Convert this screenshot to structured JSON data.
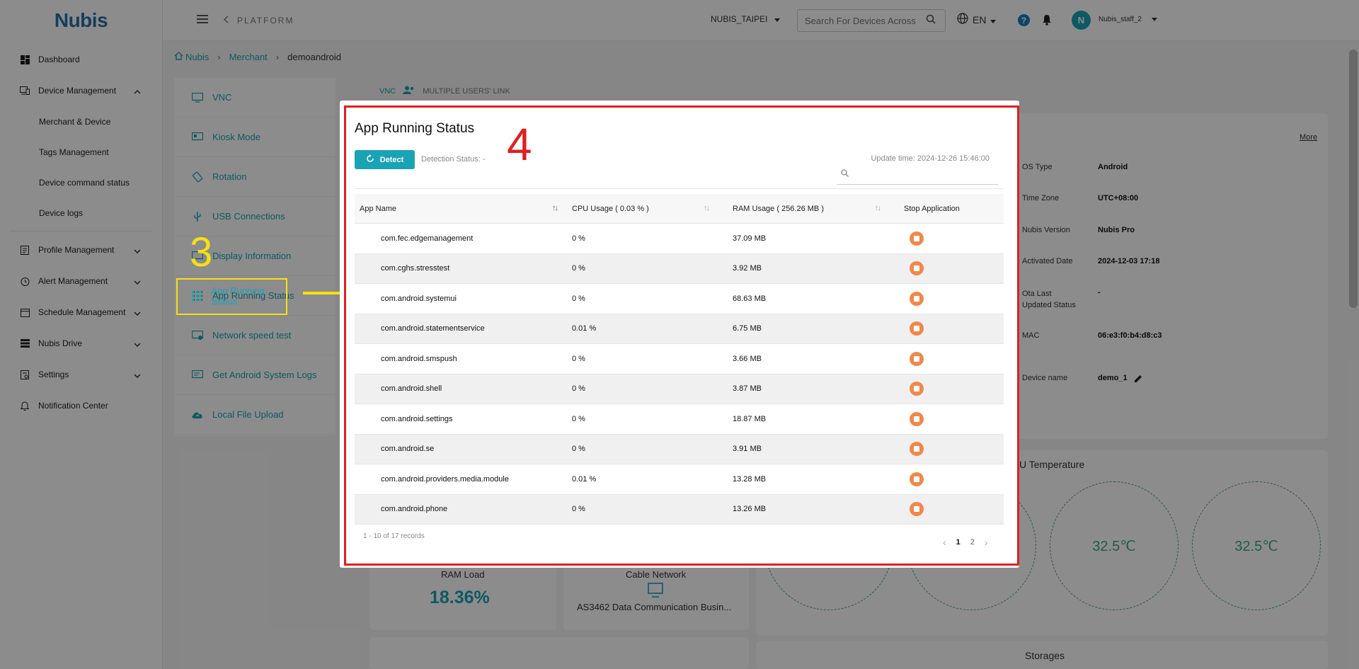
{
  "brand": {
    "logo_text": "Nubis"
  },
  "sidebar": {
    "items": [
      {
        "label": "Dashboard",
        "icon": "dashboard-icon"
      },
      {
        "label": "Device Management",
        "icon": "device-management-icon",
        "expanded": true,
        "children": [
          {
            "label": "Merchant & Device"
          },
          {
            "label": "Tags Management"
          },
          {
            "label": "Device command status"
          },
          {
            "label": "Device logs"
          }
        ]
      },
      {
        "label": "Profile Management",
        "icon": "profile-icon"
      },
      {
        "label": "Alert Management",
        "icon": "alert-clock-icon"
      },
      {
        "label": "Schedule Management",
        "icon": "calendar-icon"
      },
      {
        "label": "Nubis Drive",
        "icon": "drive-icon"
      },
      {
        "label": "Settings",
        "icon": "settings-icon"
      },
      {
        "label": "Notification Center",
        "icon": "notification-icon"
      }
    ]
  },
  "topbar": {
    "section": "PLATFORM",
    "org": "NUBIS_TAIPEI",
    "search_placeholder": "Search For Devices Across",
    "language": "EN",
    "avatar_initial": "N",
    "username": "Nubis_staff_2"
  },
  "breadcrumb": {
    "items": [
      "Nubis",
      "Merchant",
      "demoandroid"
    ]
  },
  "feature_menu": [
    {
      "label": "VNC",
      "icon": "vnc-icon"
    },
    {
      "label": "Kiosk Mode",
      "icon": "kiosk-icon"
    },
    {
      "label": "Rotation",
      "icon": "rotation-icon"
    },
    {
      "label": "USB Connections",
      "icon": "usb-icon"
    },
    {
      "label": "Display Information",
      "icon": "display-icon"
    },
    {
      "label": "App Running Status",
      "icon": "grid-icon"
    },
    {
      "label": "Network speed test",
      "icon": "network-icon"
    },
    {
      "label": "Get Android System Logs",
      "icon": "logs-icon"
    },
    {
      "label": "Local File Upload",
      "icon": "cloud-upload-icon"
    }
  ],
  "background_tabs": {
    "vnc": "VNC",
    "multi_link": "MULTIPLE USERS' LINK"
  },
  "device_info": {
    "more": "More",
    "rows": [
      {
        "label": "OS Type",
        "value": "Android"
      },
      {
        "label": "Time Zone",
        "value": "UTC+08:00"
      },
      {
        "label": "Nubis Version",
        "value": "Nubis Pro"
      },
      {
        "label": "Activated Date",
        "value": "2024-12-03 17:18"
      },
      {
        "label": "Ota Last Updated Status",
        "value": "-"
      },
      {
        "label": "MAC",
        "value": "06:e3:f0:b4:d8:c3"
      },
      {
        "label": "Device name",
        "value": "demo_1"
      }
    ]
  },
  "temperature": {
    "title": "U Temperature",
    "values": [
      "32.5℃",
      "32.5℃"
    ]
  },
  "ram": {
    "label": "RAM Load",
    "value": "18.36%"
  },
  "cable": {
    "label": "Cable Network",
    "value": "AS3462 Data Communication Busin..."
  },
  "storages": {
    "label": "Storages"
  },
  "annotations": {
    "step3": "3",
    "step4": "4"
  },
  "modal": {
    "title": "App Running Status",
    "detect_label": "Detect",
    "detection_status": "Detection Status: -",
    "update_time": "Update time: 2024-12-26 15:46:00",
    "columns": {
      "app_name": "App Name",
      "cpu": "CPU Usage ( 0.03 % )",
      "ram": "RAM Usage ( 256.26 MB )",
      "stop": "Stop Application"
    },
    "rows": [
      {
        "app": "com.fec.edgemanagement",
        "cpu": "0 %",
        "ram": "37.09 MB"
      },
      {
        "app": "com.cghs.stresstest",
        "cpu": "0 %",
        "ram": "3.92 MB"
      },
      {
        "app": "com.android.systemui",
        "cpu": "0 %",
        "ram": "68.63 MB"
      },
      {
        "app": "com.android.statementservice",
        "cpu": "0.01 %",
        "ram": "6.75 MB"
      },
      {
        "app": "com.android.smspush",
        "cpu": "0 %",
        "ram": "3.66 MB"
      },
      {
        "app": "com.android.shell",
        "cpu": "0 %",
        "ram": "3.87 MB"
      },
      {
        "app": "com.android.settings",
        "cpu": "0 %",
        "ram": "18.87 MB"
      },
      {
        "app": "com.android.se",
        "cpu": "0 %",
        "ram": "3.91 MB"
      },
      {
        "app": "com.android.providers.media.module",
        "cpu": "0.01 %",
        "ram": "13.28 MB"
      },
      {
        "app": "com.android.phone",
        "cpu": "0 %",
        "ram": "13.26 MB"
      }
    ],
    "records": "1 - 10 of 17 records",
    "pages": [
      "1",
      "2"
    ],
    "current_page": "1"
  },
  "colors": {
    "accent": "#1aa3b5",
    "stop": "#f0884a",
    "annotation_yellow": "#f5e012",
    "annotation_red": "#e02020"
  }
}
